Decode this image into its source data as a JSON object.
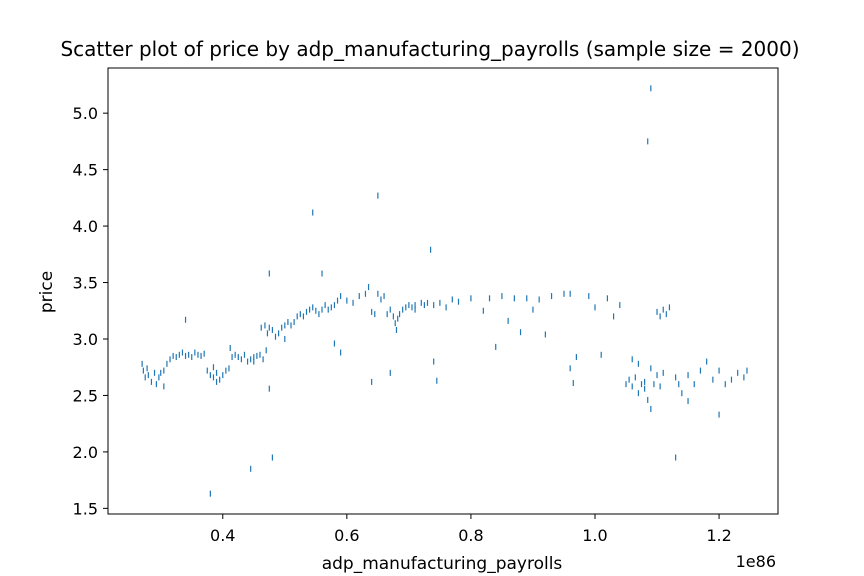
{
  "chart_data": {
    "type": "scatter",
    "title": "Scatter plot of price by adp_manufacturing_payrolls (sample size = 2000)",
    "xlabel": "adp_manufacturing_payrolls",
    "ylabel": "price",
    "x_offset_text": "1e86",
    "xlim": [
      0.215,
      1.295
    ],
    "ylim": [
      1.45,
      5.4
    ],
    "x_ticks": [
      0.4,
      0.6,
      0.8,
      1.0,
      1.2
    ],
    "x_tick_labels": [
      "0.4",
      "0.6",
      "0.8",
      "1.0",
      "1.2"
    ],
    "y_ticks": [
      1.5,
      2.0,
      2.5,
      3.0,
      3.5,
      4.0,
      4.5,
      5.0
    ],
    "y_tick_labels": [
      "1.5",
      "2.0",
      "2.5",
      "3.0",
      "3.5",
      "4.0",
      "4.5",
      "5.0"
    ],
    "grid": false,
    "marker_color": "#1f77b4",
    "series": [
      {
        "points": [
          [
            0.27,
            2.78
          ],
          [
            0.272,
            2.72
          ],
          [
            0.275,
            2.66
          ],
          [
            0.278,
            2.74
          ],
          [
            0.28,
            2.68
          ],
          [
            0.285,
            2.62
          ],
          [
            0.29,
            2.7
          ],
          [
            0.293,
            2.6
          ],
          [
            0.297,
            2.66
          ],
          [
            0.3,
            2.7
          ],
          [
            0.305,
            2.72
          ],
          [
            0.31,
            2.78
          ],
          [
            0.315,
            2.82
          ],
          [
            0.32,
            2.85
          ],
          [
            0.325,
            2.84
          ],
          [
            0.33,
            2.86
          ],
          [
            0.335,
            2.88
          ],
          [
            0.34,
            2.85
          ],
          [
            0.345,
            2.86
          ],
          [
            0.35,
            2.84
          ],
          [
            0.355,
            2.88
          ],
          [
            0.36,
            2.86
          ],
          [
            0.365,
            2.85
          ],
          [
            0.37,
            2.87
          ],
          [
            0.375,
            2.72
          ],
          [
            0.38,
            2.68
          ],
          [
            0.385,
            2.66
          ],
          [
            0.39,
            2.7
          ],
          [
            0.395,
            2.64
          ],
          [
            0.4,
            2.68
          ],
          [
            0.405,
            2.72
          ],
          [
            0.41,
            2.74
          ],
          [
            0.412,
            2.92
          ],
          [
            0.415,
            2.84
          ],
          [
            0.42,
            2.86
          ],
          [
            0.425,
            2.84
          ],
          [
            0.43,
            2.82
          ],
          [
            0.435,
            2.86
          ],
          [
            0.44,
            2.8
          ],
          [
            0.445,
            2.82
          ],
          [
            0.45,
            2.84
          ],
          [
            0.455,
            2.85
          ],
          [
            0.46,
            2.86
          ],
          [
            0.462,
            3.1
          ],
          [
            0.465,
            2.82
          ],
          [
            0.468,
            3.12
          ],
          [
            0.47,
            2.9
          ],
          [
            0.472,
            3.05
          ],
          [
            0.475,
            3.1
          ],
          [
            0.48,
            3.08
          ],
          [
            0.485,
            3.02
          ],
          [
            0.49,
            3.05
          ],
          [
            0.495,
            3.1
          ],
          [
            0.5,
            3.12
          ],
          [
            0.505,
            3.15
          ],
          [
            0.51,
            3.12
          ],
          [
            0.515,
            3.15
          ],
          [
            0.52,
            3.2
          ],
          [
            0.525,
            3.22
          ],
          [
            0.53,
            3.2
          ],
          [
            0.535,
            3.24
          ],
          [
            0.54,
            3.26
          ],
          [
            0.545,
            3.28
          ],
          [
            0.55,
            3.25
          ],
          [
            0.555,
            3.22
          ],
          [
            0.56,
            3.26
          ],
          [
            0.565,
            3.3
          ],
          [
            0.57,
            3.26
          ],
          [
            0.575,
            3.28
          ],
          [
            0.58,
            3.3
          ],
          [
            0.585,
            3.34
          ],
          [
            0.59,
            3.38
          ],
          [
            0.6,
            3.34
          ],
          [
            0.61,
            3.32
          ],
          [
            0.62,
            3.38
          ],
          [
            0.63,
            3.4
          ],
          [
            0.635,
            3.46
          ],
          [
            0.64,
            3.24
          ],
          [
            0.645,
            3.22
          ],
          [
            0.65,
            3.4
          ],
          [
            0.655,
            3.35
          ],
          [
            0.66,
            3.38
          ],
          [
            0.665,
            3.22
          ],
          [
            0.67,
            3.26
          ],
          [
            0.675,
            3.2
          ],
          [
            0.678,
            3.14
          ],
          [
            0.68,
            3.08
          ],
          [
            0.682,
            3.18
          ],
          [
            0.685,
            3.22
          ],
          [
            0.69,
            3.26
          ],
          [
            0.695,
            3.28
          ],
          [
            0.7,
            3.3
          ],
          [
            0.705,
            3.28
          ],
          [
            0.71,
            3.3
          ],
          [
            0.72,
            3.32
          ],
          [
            0.725,
            3.3
          ],
          [
            0.73,
            3.32
          ],
          [
            0.74,
            3.3
          ],
          [
            0.75,
            3.32
          ],
          [
            0.76,
            3.28
          ],
          [
            0.77,
            3.35
          ],
          [
            0.78,
            3.33
          ],
          [
            0.8,
            3.36
          ],
          [
            0.82,
            3.25
          ],
          [
            0.83,
            3.36
          ],
          [
            0.85,
            3.38
          ],
          [
            0.86,
            3.16
          ],
          [
            0.87,
            3.36
          ],
          [
            0.88,
            3.06
          ],
          [
            0.89,
            3.36
          ],
          [
            0.9,
            3.26
          ],
          [
            0.91,
            3.35
          ],
          [
            0.92,
            3.04
          ],
          [
            0.93,
            3.38
          ],
          [
            0.95,
            3.4
          ],
          [
            0.96,
            3.4
          ],
          [
            0.97,
            2.84
          ],
          [
            0.99,
            3.38
          ],
          [
            1.0,
            3.28
          ],
          [
            1.01,
            2.86
          ],
          [
            1.02,
            3.36
          ],
          [
            1.03,
            3.2
          ],
          [
            1.04,
            3.3
          ],
          [
            1.05,
            2.6
          ],
          [
            1.055,
            2.64
          ],
          [
            1.06,
            2.58
          ],
          [
            1.065,
            2.66
          ],
          [
            1.07,
            2.52
          ],
          [
            1.075,
            2.6
          ],
          [
            1.08,
            2.56
          ],
          [
            1.085,
            2.46
          ],
          [
            1.09,
            2.38
          ],
          [
            1.095,
            2.6
          ],
          [
            1.1,
            3.24
          ],
          [
            1.105,
            3.2
          ],
          [
            1.11,
            3.26
          ],
          [
            1.115,
            3.22
          ],
          [
            1.12,
            3.28
          ],
          [
            1.13,
            2.66
          ],
          [
            1.135,
            2.6
          ],
          [
            1.14,
            2.52
          ],
          [
            1.15,
            2.68
          ],
          [
            1.16,
            2.6
          ],
          [
            1.17,
            2.72
          ],
          [
            1.18,
            2.8
          ],
          [
            1.19,
            2.64
          ],
          [
            1.2,
            2.72
          ],
          [
            1.21,
            2.6
          ],
          [
            1.22,
            2.64
          ],
          [
            1.23,
            2.7
          ],
          [
            1.24,
            2.66
          ],
          [
            1.245,
            2.72
          ],
          [
            1.09,
            2.74
          ],
          [
            1.1,
            2.68
          ],
          [
            1.11,
            2.7
          ],
          [
            1.105,
            2.58
          ],
          [
            1.08,
            2.62
          ],
          [
            1.07,
            2.78
          ],
          [
            1.06,
            2.82
          ],
          [
            0.545,
            4.12
          ],
          [
            0.56,
            3.58
          ],
          [
            0.65,
            4.27
          ],
          [
            0.735,
            3.79
          ],
          [
            0.475,
            3.58
          ],
          [
            0.34,
            3.17
          ],
          [
            0.5,
            3.0
          ],
          [
            0.58,
            2.96
          ],
          [
            0.59,
            2.88
          ],
          [
            0.445,
            1.85
          ],
          [
            0.48,
            1.95
          ],
          [
            0.38,
            1.63
          ],
          [
            0.475,
            2.56
          ],
          [
            0.64,
            2.62
          ],
          [
            0.67,
            2.7
          ],
          [
            0.74,
            2.8
          ],
          [
            0.745,
            2.63
          ],
          [
            0.84,
            2.93
          ],
          [
            0.965,
            2.61
          ],
          [
            1.085,
            4.75
          ],
          [
            1.09,
            5.22
          ],
          [
            1.13,
            1.95
          ],
          [
            1.2,
            2.33
          ],
          [
            1.15,
            2.45
          ],
          [
            0.305,
            2.58
          ],
          [
            0.385,
            2.75
          ],
          [
            0.39,
            2.62
          ],
          [
            0.45,
            2.8
          ],
          [
            0.71,
            3.26
          ],
          [
            0.96,
            2.74
          ]
        ]
      }
    ]
  }
}
